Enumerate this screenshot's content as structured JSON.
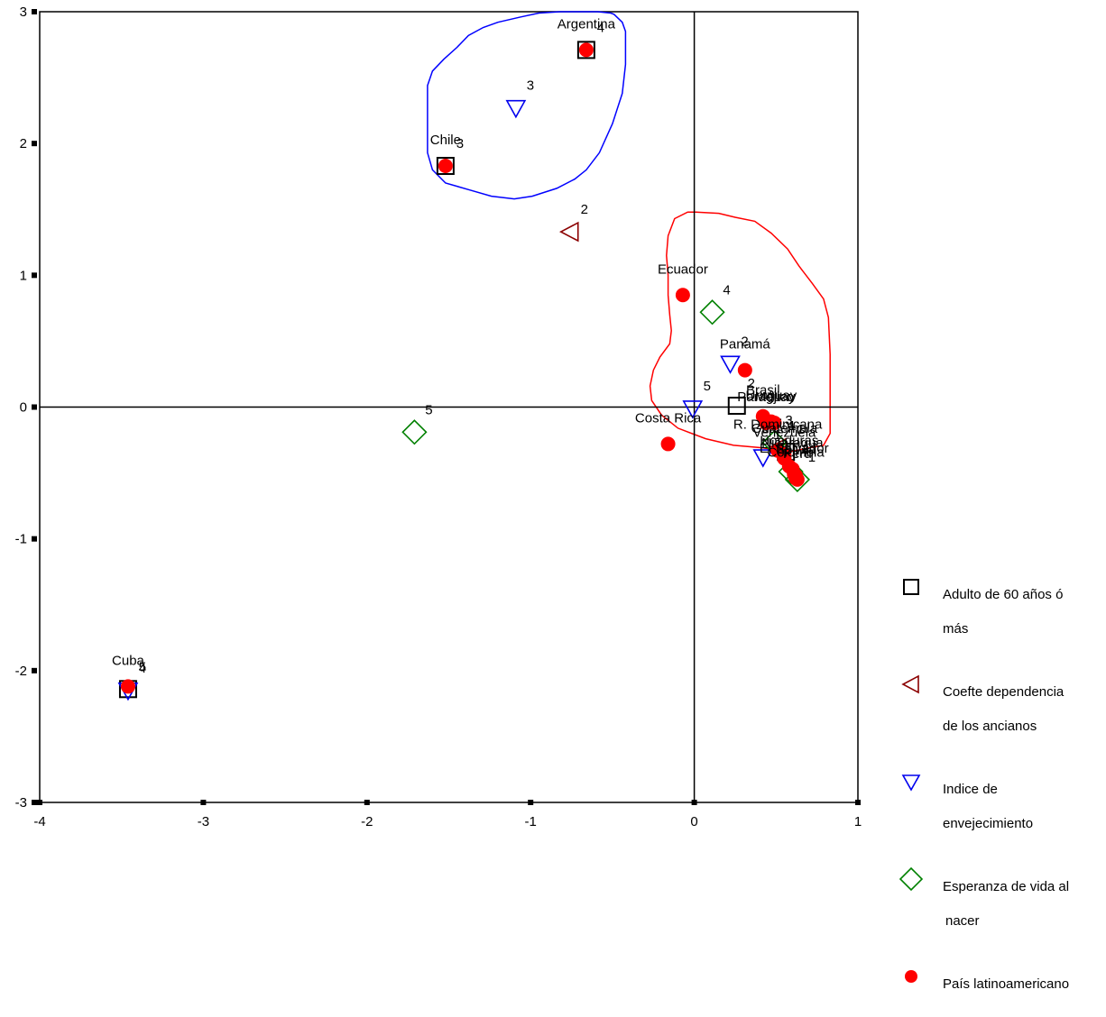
{
  "chart_data": {
    "type": "scatter",
    "title": "",
    "xlabel": "",
    "ylabel": "",
    "xlim": [
      -4,
      1
    ],
    "ylim": [
      -3,
      3
    ],
    "x_ticks": [
      -4,
      -3,
      -2,
      -1,
      0,
      1
    ],
    "y_ticks": [
      -3,
      -2,
      -1,
      0,
      1,
      2,
      3
    ],
    "x_tick_labels": [
      "-4",
      "-3",
      "-2",
      "-1",
      "0",
      "1"
    ],
    "y_tick_labels": [
      "-3",
      "-2",
      "-1",
      "0",
      "1",
      "2",
      "3"
    ],
    "grid": false,
    "reference_lines": {
      "x": 0,
      "y": 0
    },
    "legend_position": "right",
    "series": [
      {
        "name": "Adulto de 60 años ó más",
        "marker": "square",
        "color": "#000000",
        "points": [
          {
            "x": -0.66,
            "y": 2.71,
            "label": "4"
          },
          {
            "x": -1.52,
            "y": 1.83,
            "label": "3"
          },
          {
            "x": 0.26,
            "y": 0.01,
            "label": "2"
          },
          {
            "x": 0.56,
            "y": -0.34,
            "label": "1"
          },
          {
            "x": -3.46,
            "y": -2.14,
            "label": "5"
          }
        ]
      },
      {
        "name": "Coefte dependencia de los ancianos",
        "marker": "triangle-left",
        "color": "#8b0000",
        "points": [
          {
            "x": -0.76,
            "y": 1.33,
            "label": "2"
          },
          {
            "x": 0.51,
            "y": -0.31,
            "label": "1"
          }
        ]
      },
      {
        "name": "Indice de envejecimiento",
        "marker": "triangle-down",
        "color": "#0000ee",
        "points": [
          {
            "x": -1.09,
            "y": 2.27,
            "label": "3"
          },
          {
            "x": 0.22,
            "y": 0.33,
            "label": "2"
          },
          {
            "x": -0.01,
            "y": -0.01,
            "label": "5"
          },
          {
            "x": 0.42,
            "y": -0.38,
            "label": "1"
          },
          {
            "x": -3.46,
            "y": -2.15,
            "label": "4"
          }
        ]
      },
      {
        "name": "Esperanza de vida al nacer",
        "marker": "diamond",
        "color": "#008000",
        "points": [
          {
            "x": 0.11,
            "y": 0.72,
            "label": "4"
          },
          {
            "x": -1.71,
            "y": -0.19,
            "label": "5"
          },
          {
            "x": 0.49,
            "y": -0.27,
            "label": "3"
          },
          {
            "x": 0.59,
            "y": -0.49,
            "label": "2"
          },
          {
            "x": 0.63,
            "y": -0.55,
            "label": "1"
          }
        ]
      },
      {
        "name": "País latinoamericano",
        "marker": "circle",
        "color": "#ff0000",
        "points": [
          {
            "x": -0.66,
            "y": 2.71,
            "label": "Argentina"
          },
          {
            "x": -1.52,
            "y": 1.83,
            "label": "Chile"
          },
          {
            "x": -0.07,
            "y": 0.85,
            "label": "Ecuador"
          },
          {
            "x": 0.31,
            "y": 0.28,
            "label": "Panamá"
          },
          {
            "x": 0.42,
            "y": -0.07,
            "label": "Brasil"
          },
          {
            "x": 0.47,
            "y": -0.11,
            "label": "Uruguay"
          },
          {
            "x": 0.44,
            "y": -0.12,
            "label": "Paraguay"
          },
          {
            "x": 0.49,
            "y": -0.12,
            "label": "Méjico"
          },
          {
            "x": -0.16,
            "y": -0.28,
            "label": "Costa Rica"
          },
          {
            "x": 0.51,
            "y": -0.33,
            "label": "R. Dominicana"
          },
          {
            "x": 0.55,
            "y": -0.36,
            "label": "Guatemala"
          },
          {
            "x": 0.55,
            "y": -0.39,
            "label": "Venezuela"
          },
          {
            "x": 0.58,
            "y": -0.45,
            "label": "Honduras"
          },
          {
            "x": 0.6,
            "y": -0.47,
            "label": "Nicaragua"
          },
          {
            "x": 0.61,
            "y": -0.51,
            "label": "El Salvador"
          },
          {
            "x": 0.62,
            "y": -0.54,
            "label": "Colombia"
          },
          {
            "x": 0.63,
            "y": -0.55,
            "label": "Perú"
          },
          {
            "x": 0.62,
            "y": -0.52,
            "label": "Bolivia"
          },
          {
            "x": -3.46,
            "y": -2.12,
            "label": "Cuba"
          }
        ]
      }
    ],
    "legend": [
      {
        "marker": "square",
        "color": "#000000",
        "lines": [
          "Adulto de 60 años ó",
          "más"
        ]
      },
      {
        "marker": "triangle-left",
        "color": "#8b0000",
        "lines": [
          "Coefte dependencia",
          "de los ancianos"
        ]
      },
      {
        "marker": "triangle-down",
        "color": "#0000ee",
        "lines": [
          "Indice de",
          "envejecimiento"
        ]
      },
      {
        "marker": "diamond",
        "color": "#008000",
        "lines": [
          "Esperanza de vida al",
          "nacer"
        ]
      },
      {
        "marker": "circle",
        "color": "#ff0000",
        "lines": [
          "País latinoamericano"
        ]
      }
    ],
    "enclosures": [
      {
        "color": "#0000ff",
        "points": [
          [
            -0.49,
            2.98
          ],
          [
            -0.44,
            2.92
          ],
          [
            -0.42,
            2.85
          ],
          [
            -0.42,
            2.6
          ],
          [
            -0.44,
            2.38
          ],
          [
            -0.5,
            2.15
          ],
          [
            -0.58,
            1.93
          ],
          [
            -0.66,
            1.8
          ],
          [
            -0.73,
            1.73
          ],
          [
            -0.84,
            1.66
          ],
          [
            -0.99,
            1.6
          ],
          [
            -1.1,
            1.58
          ],
          [
            -1.24,
            1.6
          ],
          [
            -1.38,
            1.65
          ],
          [
            -1.52,
            1.7
          ],
          [
            -1.6,
            1.8
          ],
          [
            -1.63,
            1.93
          ],
          [
            -1.63,
            2.2
          ],
          [
            -1.63,
            2.44
          ],
          [
            -1.6,
            2.55
          ],
          [
            -1.53,
            2.64
          ],
          [
            -1.45,
            2.73
          ],
          [
            -1.38,
            2.82
          ],
          [
            -1.29,
            2.88
          ],
          [
            -1.2,
            2.92
          ],
          [
            -1.06,
            2.96
          ],
          [
            -0.95,
            2.99
          ],
          [
            -0.82,
            3.0
          ],
          [
            -0.7,
            3.0
          ],
          [
            -0.59,
            3.0
          ],
          [
            -0.51,
            2.99
          ]
        ]
      },
      {
        "color": "#ff0000",
        "points": [
          [
            0.01,
            1.48
          ],
          [
            0.15,
            1.47
          ],
          [
            0.25,
            1.44
          ],
          [
            0.37,
            1.41
          ],
          [
            0.47,
            1.32
          ],
          [
            0.57,
            1.2
          ],
          [
            0.64,
            1.07
          ],
          [
            0.72,
            0.94
          ],
          [
            0.79,
            0.82
          ],
          [
            0.82,
            0.68
          ],
          [
            0.83,
            0.4
          ],
          [
            0.83,
            0.05
          ],
          [
            0.83,
            -0.2
          ],
          [
            0.79,
            -0.29
          ],
          [
            0.7,
            -0.31
          ],
          [
            0.58,
            -0.34
          ],
          [
            0.42,
            -0.31
          ],
          [
            0.24,
            -0.29
          ],
          [
            0.07,
            -0.24
          ],
          [
            -0.1,
            -0.16
          ],
          [
            -0.2,
            -0.06
          ],
          [
            -0.26,
            0.05
          ],
          [
            -0.27,
            0.16
          ],
          [
            -0.25,
            0.28
          ],
          [
            -0.21,
            0.38
          ],
          [
            -0.15,
            0.48
          ],
          [
            -0.14,
            0.58
          ],
          [
            -0.15,
            0.7
          ],
          [
            -0.16,
            0.85
          ],
          [
            -0.16,
            1.0
          ],
          [
            -0.17,
            1.15
          ],
          [
            -0.16,
            1.3
          ],
          [
            -0.12,
            1.43
          ],
          [
            -0.04,
            1.48
          ],
          [
            0.01,
            1.48
          ]
        ]
      }
    ]
  }
}
